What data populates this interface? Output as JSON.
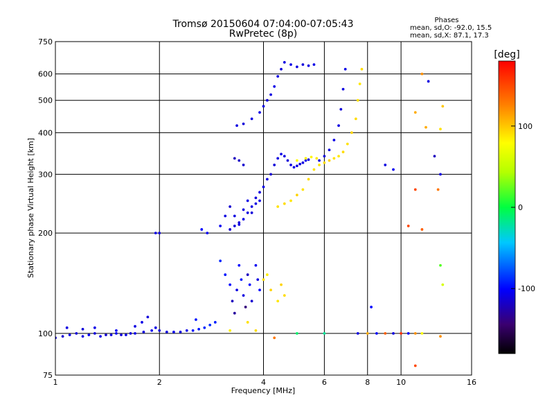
{
  "chart_data": {
    "type": "scatter",
    "title": "Tromsø 20150604 07:04:00-07:05:43",
    "subtitle": "RwPretec (8p)",
    "xlabel": "Frequency [MHz]",
    "ylabel": "Stationary phase Virtual Height [km]",
    "xscale": "log",
    "yscale": "log",
    "xlim": [
      1,
      16
    ],
    "ylim": [
      75,
      750
    ],
    "x_ticks": [
      1,
      2,
      4,
      6,
      8,
      10,
      16
    ],
    "x_grid": [
      2,
      4,
      6,
      8,
      10
    ],
    "y_ticks": [
      75,
      100,
      200,
      300,
      400,
      500,
      600,
      750
    ],
    "y_grid": [
      100,
      200,
      300,
      400,
      500,
      600
    ],
    "grid": true,
    "legend": {
      "title": "Phases",
      "lines": [
        "mean, sd,O: -92.0, 15.5",
        "mean, sd,X:  87.1, 17.3"
      ],
      "position": "top-right"
    },
    "colorbar": {
      "label": "[deg]",
      "range": [
        -180,
        180
      ],
      "ticks": [
        100,
        0,
        -100
      ],
      "colormap": "rainbow",
      "position": "right"
    },
    "series": [
      {
        "points": [
          [
            1.0,
            97,
            -110
          ],
          [
            1.05,
            98,
            -115
          ],
          [
            1.1,
            99,
            -108
          ],
          [
            1.15,
            100,
            -112
          ],
          [
            1.2,
            98,
            -110
          ],
          [
            1.25,
            99,
            -105
          ],
          [
            1.3,
            100,
            -112
          ],
          [
            1.35,
            98,
            -108
          ],
          [
            1.4,
            99,
            -115
          ],
          [
            1.45,
            99,
            -110
          ],
          [
            1.5,
            100,
            -106
          ],
          [
            1.55,
            99,
            -112
          ],
          [
            1.6,
            99,
            -109
          ],
          [
            1.65,
            100,
            -113
          ],
          [
            1.7,
            100,
            -108
          ],
          [
            1.8,
            101,
            -110
          ],
          [
            1.9,
            102,
            -106
          ],
          [
            2.0,
            102,
            -112
          ],
          [
            2.1,
            101,
            -110
          ],
          [
            2.2,
            101,
            -105
          ],
          [
            2.3,
            101,
            -110
          ],
          [
            2.4,
            102,
            -108
          ],
          [
            2.5,
            102,
            -98
          ],
          [
            2.6,
            103,
            -95
          ],
          [
            2.7,
            104,
            -90
          ],
          [
            2.8,
            106,
            -88
          ],
          [
            2.9,
            108,
            -92
          ],
          [
            1.08,
            104,
            -110
          ],
          [
            1.2,
            103,
            -112
          ],
          [
            1.3,
            104,
            -108
          ],
          [
            1.5,
            102,
            -105
          ],
          [
            1.7,
            105,
            -110
          ],
          [
            1.78,
            108,
            -108
          ],
          [
            1.85,
            112,
            -112
          ],
          [
            1.95,
            104,
            -108
          ],
          [
            2.55,
            110,
            -95
          ],
          [
            1.95,
            200,
            -110
          ],
          [
            2.0,
            200,
            -112
          ],
          [
            2.65,
            205,
            -100
          ],
          [
            2.75,
            200,
            -105
          ],
          [
            3.0,
            165,
            -90
          ],
          [
            3.1,
            150,
            -95
          ],
          [
            3.2,
            140,
            -100
          ],
          [
            3.25,
            125,
            -120
          ],
          [
            3.3,
            115,
            -130
          ],
          [
            3.35,
            135,
            -110
          ],
          [
            3.4,
            160,
            -100
          ],
          [
            3.45,
            145,
            -95
          ],
          [
            3.5,
            130,
            -110
          ],
          [
            3.55,
            120,
            -140
          ],
          [
            3.6,
            150,
            -120
          ],
          [
            3.65,
            140,
            -100
          ],
          [
            3.7,
            125,
            -115
          ],
          [
            3.8,
            160,
            -105
          ],
          [
            3.85,
            145,
            -110
          ],
          [
            3.9,
            135,
            -100
          ],
          [
            3.0,
            210,
            -105
          ],
          [
            3.1,
            225,
            -110
          ],
          [
            3.2,
            240,
            -115
          ],
          [
            3.3,
            225,
            -110
          ],
          [
            3.4,
            215,
            -112
          ],
          [
            3.5,
            235,
            -110
          ],
          [
            3.6,
            250,
            -108
          ],
          [
            3.7,
            240,
            -110
          ],
          [
            3.8,
            255,
            -112
          ],
          [
            3.9,
            265,
            -110
          ],
          [
            4.0,
            275,
            -108
          ],
          [
            4.1,
            290,
            -110
          ],
          [
            4.2,
            300,
            -115
          ],
          [
            4.3,
            320,
            -112
          ],
          [
            4.4,
            335,
            -110
          ],
          [
            4.5,
            345,
            -108
          ],
          [
            4.6,
            340,
            -110
          ],
          [
            4.7,
            330,
            -112
          ],
          [
            4.8,
            320,
            -110
          ],
          [
            4.9,
            315,
            -108
          ],
          [
            5.0,
            318,
            -110
          ],
          [
            5.1,
            322,
            -112
          ],
          [
            5.2,
            325,
            -110
          ],
          [
            5.3,
            330,
            -108
          ],
          [
            5.4,
            332,
            -110
          ],
          [
            3.2,
            205,
            -115
          ],
          [
            3.3,
            210,
            -112
          ],
          [
            3.4,
            212,
            -110
          ],
          [
            3.5,
            220,
            -108
          ],
          [
            3.6,
            230,
            -110
          ],
          [
            3.7,
            230,
            -112
          ],
          [
            3.8,
            245,
            -110
          ],
          [
            3.9,
            250,
            -108
          ],
          [
            3.3,
            335,
            -120
          ],
          [
            3.4,
            330,
            -118
          ],
          [
            3.5,
            320,
            -115
          ],
          [
            3.35,
            420,
            -110
          ],
          [
            3.5,
            425,
            -112
          ],
          [
            3.7,
            440,
            -110
          ],
          [
            3.9,
            460,
            -108
          ],
          [
            4.0,
            480,
            -110
          ],
          [
            4.1,
            500,
            -112
          ],
          [
            4.2,
            520,
            -110
          ],
          [
            4.3,
            550,
            -108
          ],
          [
            4.4,
            590,
            -110
          ],
          [
            4.5,
            620,
            -112
          ],
          [
            4.6,
            650,
            -110
          ],
          [
            4.8,
            640,
            -108
          ],
          [
            5.0,
            630,
            -110
          ],
          [
            5.2,
            640,
            -112
          ],
          [
            5.4,
            635,
            -110
          ],
          [
            5.6,
            640,
            -108
          ],
          [
            5.8,
            330,
            -110
          ],
          [
            6.0,
            340,
            -112
          ],
          [
            6.2,
            355,
            -110
          ],
          [
            6.4,
            380,
            -108
          ],
          [
            6.6,
            420,
            -110
          ],
          [
            6.7,
            470,
            -112
          ],
          [
            6.8,
            540,
            -110
          ],
          [
            6.9,
            620,
            -108
          ],
          [
            4.0,
            145,
            90
          ],
          [
            4.2,
            135,
            95
          ],
          [
            4.4,
            125,
            88
          ],
          [
            4.6,
            130,
            92
          ],
          [
            4.1,
            150,
            85
          ],
          [
            4.5,
            140,
            95
          ],
          [
            3.6,
            108,
            90
          ],
          [
            3.8,
            102,
            92
          ],
          [
            3.2,
            102,
            85
          ],
          [
            4.4,
            240,
            90
          ],
          [
            4.6,
            245,
            92
          ],
          [
            4.8,
            250,
            88
          ],
          [
            5.0,
            260,
            95
          ],
          [
            5.2,
            270,
            90
          ],
          [
            5.4,
            290,
            92
          ],
          [
            5.6,
            310,
            90
          ],
          [
            5.8,
            320,
            88
          ],
          [
            6.0,
            325,
            92
          ],
          [
            6.2,
            330,
            95
          ],
          [
            6.4,
            335,
            90
          ],
          [
            6.6,
            340,
            88
          ],
          [
            6.8,
            350,
            92
          ],
          [
            7.0,
            370,
            90
          ],
          [
            7.2,
            400,
            95
          ],
          [
            7.4,
            440,
            92
          ],
          [
            7.5,
            500,
            90
          ],
          [
            7.6,
            560,
            88
          ],
          [
            7.7,
            620,
            92
          ],
          [
            5.0,
            330,
            80
          ],
          [
            5.3,
            335,
            85
          ],
          [
            5.5,
            338,
            82
          ],
          [
            5.7,
            335,
            88
          ],
          [
            9.0,
            320,
            -110
          ],
          [
            9.5,
            310,
            -105
          ],
          [
            8.2,
            120,
            -100
          ],
          [
            11.0,
            460,
            110
          ],
          [
            11.5,
            600,
            120
          ],
          [
            12.0,
            570,
            -110
          ],
          [
            11.8,
            415,
            110
          ],
          [
            12.5,
            340,
            -120
          ],
          [
            13.0,
            300,
            -110
          ],
          [
            13.0,
            410,
            90
          ],
          [
            13.2,
            480,
            100
          ],
          [
            12.8,
            270,
            130
          ],
          [
            11.0,
            270,
            150
          ],
          [
            10.5,
            210,
            150
          ],
          [
            11.5,
            205,
            140
          ],
          [
            13.0,
            160,
            20
          ],
          [
            13.2,
            140,
            60
          ],
          [
            7.5,
            100,
            -110
          ],
          [
            8.0,
            100,
            110
          ],
          [
            8.5,
            100,
            -100
          ],
          [
            9.0,
            100,
            140
          ],
          [
            9.5,
            100,
            -110
          ],
          [
            10.0,
            100,
            160
          ],
          [
            10.5,
            100,
            -100
          ],
          [
            11.0,
            100,
            120
          ],
          [
            11.5,
            100,
            80
          ],
          [
            6.0,
            100,
            -20
          ],
          [
            5.0,
            100,
            -10
          ],
          [
            4.3,
            97,
            130
          ],
          [
            11.0,
            80,
            150
          ],
          [
            13.0,
            98,
            120
          ]
        ]
      }
    ]
  }
}
